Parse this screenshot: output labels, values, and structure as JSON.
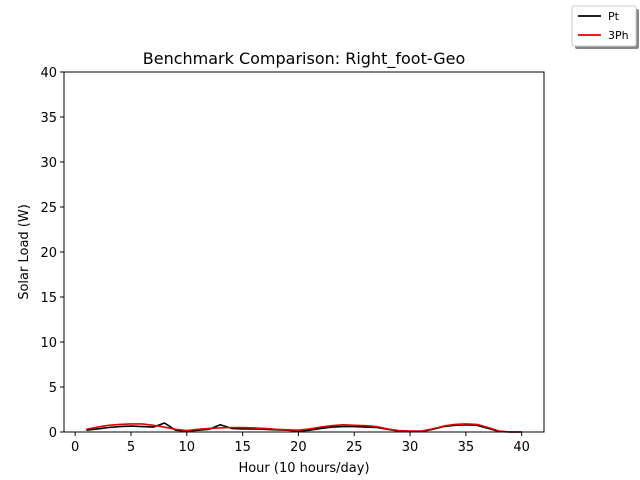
{
  "chart_data": {
    "type": "line",
    "title": "Benchmark Comparison: Right_foot-Geo",
    "xlabel": "Hour (10 hours/day)",
    "ylabel": "Solar Load (W)",
    "xlim": [
      -1,
      42
    ],
    "ylim": [
      0,
      40
    ],
    "xticks": [
      "0",
      "5",
      "10",
      "15",
      "20",
      "25",
      "30",
      "35",
      "40"
    ],
    "yticks": [
      "0",
      "5",
      "10",
      "15",
      "20",
      "25",
      "30",
      "35",
      "40"
    ],
    "grid": false,
    "legend_position": "top-right",
    "series": [
      {
        "name": "Pt",
        "color": "#000000",
        "x": [
          1,
          2,
          3,
          4,
          5,
          6,
          7,
          8,
          9,
          10,
          11,
          12,
          13,
          14,
          15,
          16,
          17,
          18,
          19,
          20,
          21,
          22,
          23,
          24,
          25,
          26,
          27,
          28,
          29,
          30,
          31,
          32,
          33,
          34,
          35,
          36,
          37,
          38,
          39,
          40
        ],
        "y": [
          0.2,
          0.35,
          0.5,
          0.6,
          0.65,
          0.6,
          0.55,
          1.0,
          0.2,
          0.1,
          0.2,
          0.3,
          0.8,
          0.4,
          0.35,
          0.35,
          0.3,
          0.25,
          0.2,
          0.1,
          0.2,
          0.4,
          0.55,
          0.6,
          0.6,
          0.55,
          0.5,
          0.3,
          0.1,
          0.05,
          0.05,
          0.3,
          0.6,
          0.75,
          0.8,
          0.75,
          0.4,
          0.05,
          0.0,
          0.0
        ]
      },
      {
        "name": "3Ph",
        "color": "#e00000",
        "x": [
          1,
          2,
          3,
          4,
          5,
          6,
          7,
          8,
          9,
          10,
          11,
          12,
          13,
          14,
          15,
          16,
          17,
          18,
          19,
          20,
          21,
          22,
          23,
          24,
          25,
          26,
          27,
          28,
          29,
          30,
          31,
          32,
          33,
          34,
          35,
          36,
          37,
          38,
          39,
          40
        ],
        "y": [
          0.3,
          0.55,
          0.75,
          0.85,
          0.9,
          0.9,
          0.75,
          0.55,
          0.3,
          0.15,
          0.3,
          0.4,
          0.45,
          0.5,
          0.5,
          0.45,
          0.4,
          0.3,
          0.25,
          0.2,
          0.35,
          0.55,
          0.7,
          0.8,
          0.75,
          0.7,
          0.6,
          0.35,
          0.15,
          0.1,
          0.1,
          0.35,
          0.65,
          0.85,
          0.9,
          0.85,
          0.5,
          0.1,
          0.0,
          0.0
        ]
      }
    ]
  }
}
